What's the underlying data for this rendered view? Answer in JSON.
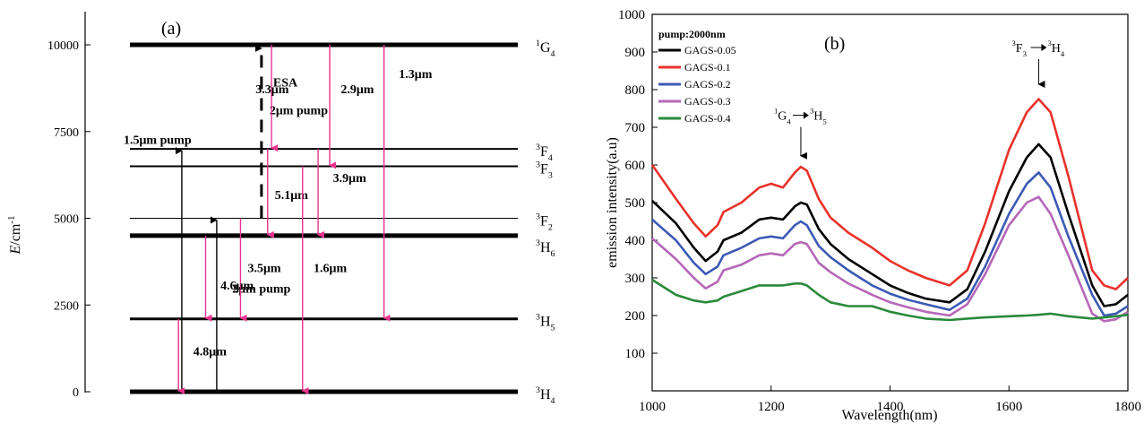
{
  "panel_a": {
    "label": "(a)",
    "ylabel_main": "E",
    "ylabel_unit": "/cm",
    "ylabel_exp": "-1",
    "y_ticks": [
      0,
      2500,
      5000,
      7500,
      10000
    ],
    "y_range": [
      0,
      10000
    ],
    "levels": [
      {
        "name": "3H4",
        "sup": "3",
        "base": "H",
        "sub": "4",
        "energy": 0,
        "thick": 5
      },
      {
        "name": "3H5",
        "sup": "3",
        "base": "H",
        "sub": "5",
        "energy": 2100,
        "thick": 3
      },
      {
        "name": "3H6",
        "sup": "3",
        "base": "H",
        "sub": "6",
        "energy": 4500,
        "thick": 5
      },
      {
        "name": "3F2",
        "sup": "3",
        "base": "F",
        "sub": "2",
        "energy": 5000,
        "thick": 1
      },
      {
        "name": "3F3",
        "sup": "3",
        "base": "F",
        "sub": "3",
        "energy": 6500,
        "thick": 2
      },
      {
        "name": "3F4",
        "sup": "3",
        "base": "F",
        "sub": "4",
        "energy": 7000,
        "thick": 2
      },
      {
        "name": "1G4",
        "sup": "1",
        "base": "G",
        "sub": "4",
        "energy": 10000,
        "thick": 5
      }
    ],
    "level_label_offsets": [
      0,
      0,
      25,
      0,
      0,
      0,
      0
    ],
    "pump_arrows": [
      {
        "label": "1.5μm pump",
        "x_frac": 0.18,
        "from": 0,
        "to": 7000,
        "label_x_frac": 0.03,
        "label_y": 7150
      },
      {
        "label": "2μm pump",
        "x_frac": 0.27,
        "from": 0,
        "to": 5000,
        "label_x_frac": 0.31,
        "label_y": 2850
      }
    ],
    "esa": {
      "label_top": "ESA",
      "label_bottom": "2μm pump",
      "x_frac": 0.39,
      "from": 5000,
      "to": 10000
    },
    "emissions": [
      {
        "label": "3.3μm",
        "x_frac": 0.7,
        "from": 10000,
        "to": 7000,
        "lx": -0.06,
        "ly": 8600
      },
      {
        "label": "2.9μm",
        "x_frac": 0.85,
        "from": 10000,
        "to": 6500,
        "lx": 0.01,
        "ly": 8600
      },
      {
        "label": "1.3μm",
        "x_frac": 0.99,
        "from": 10000,
        "to": 2100,
        "lx": 0.02,
        "ly": 9050
      },
      {
        "label": "5.1μm",
        "x_frac": 0.69,
        "from": 7000,
        "to": 4500,
        "lx": 0.0,
        "ly": 5550
      },
      {
        "label": "3.9μm",
        "x_frac": 0.82,
        "from": 7000,
        "to": 4500,
        "lx": 0.02,
        "ly": 6050
      },
      {
        "label": "1.6μm",
        "x_frac": 0.78,
        "from": 6500,
        "to": 0,
        "lx": 0.01,
        "ly": 3450
      },
      {
        "label": "3.5μm",
        "x_frac": 0.62,
        "from": 5000,
        "to": 2100,
        "lx": 0.0,
        "ly": 3450
      },
      {
        "label": "4.6μm",
        "x_frac": 0.53,
        "from": 4500,
        "to": 2100,
        "lx": 0.02,
        "ly": 2950
      },
      {
        "label": "4.8μm",
        "x_frac": 0.46,
        "from": 2100,
        "to": 0,
        "lx": 0.02,
        "ly": 1050
      }
    ],
    "arrow_color": "#e8338f"
  },
  "chart_data": {
    "type": "line",
    "panel_label": "(b)",
    "xlabel": "Wavelength(nm)",
    "ylabel": "emission intensity(a.u)",
    "xlim": [
      1000,
      1800
    ],
    "ylim": [
      0,
      1000
    ],
    "x_ticks": [
      1000,
      1200,
      1400,
      1600,
      1800
    ],
    "y_ticks": [
      0,
      100,
      200,
      300,
      400,
      500,
      600,
      700,
      800,
      900,
      1000
    ],
    "legend_title": "pump:2000nm",
    "legend_position": "top-left",
    "annotations": [
      {
        "text_parts": [
          "1",
          "G",
          "4",
          "3",
          "H",
          "5"
        ],
        "x": 1250,
        "y": 610,
        "text_y": 720
      },
      {
        "text_parts": [
          "3",
          "F",
          "3",
          "3",
          "H",
          "4"
        ],
        "x": 1650,
        "y": 800,
        "text_y": 900
      }
    ],
    "x": [
      1000,
      1040,
      1070,
      1090,
      1110,
      1120,
      1150,
      1180,
      1200,
      1220,
      1240,
      1250,
      1260,
      1280,
      1300,
      1330,
      1370,
      1400,
      1430,
      1460,
      1500,
      1530,
      1560,
      1600,
      1630,
      1650,
      1670,
      1700,
      1740,
      1760,
      1780,
      1800
    ],
    "series": [
      {
        "name": "GAGS-0.05",
        "color": "#000000",
        "values": [
          505,
          445,
          380,
          345,
          370,
          400,
          420,
          455,
          460,
          455,
          490,
          500,
          495,
          430,
          390,
          350,
          310,
          280,
          260,
          245,
          235,
          270,
          370,
          530,
          620,
          655,
          620,
          470,
          280,
          225,
          230,
          255
        ]
      },
      {
        "name": "GAGS-0.1",
        "color": "#e8322b",
        "values": [
          600,
          510,
          445,
          410,
          440,
          475,
          500,
          540,
          550,
          540,
          580,
          595,
          585,
          510,
          460,
          420,
          380,
          345,
          320,
          300,
          280,
          320,
          445,
          640,
          740,
          775,
          740,
          570,
          320,
          280,
          270,
          300
        ]
      },
      {
        "name": "GAGS-0.2",
        "color": "#3c5ab5",
        "values": [
          455,
          400,
          340,
          310,
          330,
          360,
          380,
          405,
          410,
          405,
          440,
          450,
          440,
          385,
          355,
          320,
          280,
          258,
          242,
          230,
          215,
          245,
          330,
          470,
          550,
          580,
          540,
          410,
          255,
          200,
          205,
          225
        ]
      },
      {
        "name": "GAGS-0.3",
        "color": "#b567b8",
        "values": [
          405,
          350,
          300,
          272,
          290,
          320,
          335,
          360,
          365,
          360,
          390,
          395,
          390,
          340,
          315,
          285,
          255,
          235,
          222,
          210,
          200,
          230,
          310,
          440,
          500,
          515,
          470,
          360,
          205,
          185,
          190,
          210
        ]
      },
      {
        "name": "GAGS-0.4",
        "color": "#2a8a3b",
        "values": [
          295,
          255,
          240,
          235,
          240,
          250,
          265,
          280,
          280,
          280,
          285,
          285,
          280,
          255,
          235,
          225,
          225,
          210,
          200,
          192,
          188,
          192,
          195,
          198,
          200,
          202,
          205,
          198,
          192,
          195,
          198,
          202
        ]
      }
    ]
  }
}
